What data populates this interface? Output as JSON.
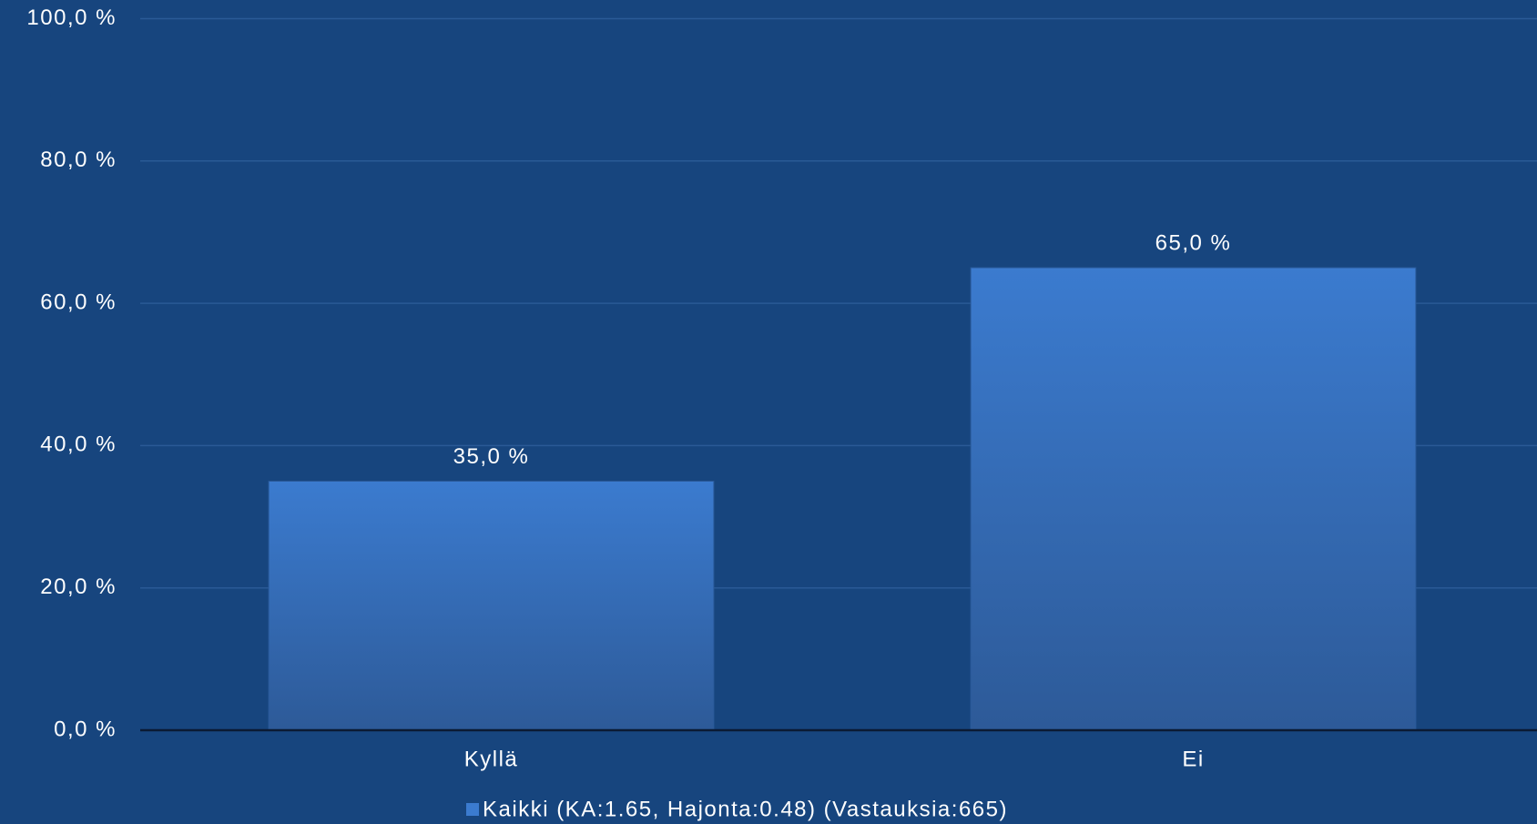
{
  "chart_data": {
    "type": "bar",
    "categories": [
      "Kyllä",
      "Ei"
    ],
    "series": [
      {
        "name": "Kaikki (KA:1.65, Hajonta:0.48) (Vastauksia:665)",
        "color": "#3b7bcf",
        "values": [
          35,
          65
        ],
        "value_labels": [
          "35,0 %",
          "65,0 %"
        ]
      }
    ],
    "ylim": [
      0,
      100
    ],
    "yticks": [
      {
        "value": 0,
        "label": "0,0 %"
      },
      {
        "value": 20,
        "label": "20,0 %"
      },
      {
        "value": 40,
        "label": "40,0 %"
      },
      {
        "value": 60,
        "label": "60,0 %"
      },
      {
        "value": 80,
        "label": "80,0 %"
      },
      {
        "value": 100,
        "label": "100,0 %"
      }
    ],
    "grid": true,
    "legend": "bottom"
  }
}
